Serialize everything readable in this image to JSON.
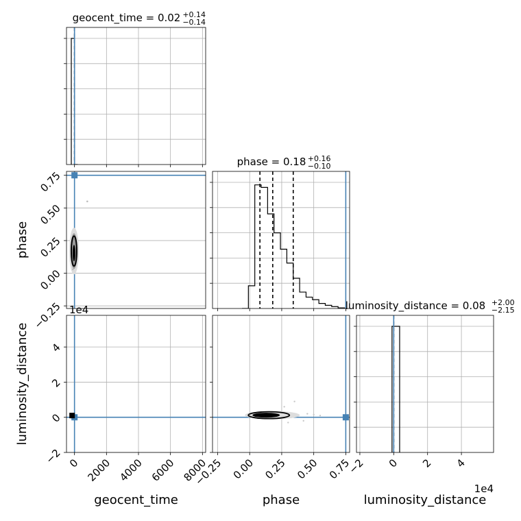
{
  "chart_data": {
    "type": "corner",
    "parameters": [
      "geocent_time",
      "phase",
      "luminosity_distance"
    ],
    "truth": {
      "geocent_time": 0,
      "phase": 0.75,
      "luminosity_distance": 0
    },
    "truth_color": "#4682b4",
    "grid": true,
    "panels": [
      {
        "id": "geocent_time-hist",
        "kind": "histogram",
        "param": "geocent_time",
        "title": {
          "main": "geocent_time = 0.02",
          "sup": "+0.14",
          "sub": "−0.14"
        },
        "xlim": [
          -500,
          8200
        ],
        "xticks": [
          0,
          2000,
          4000,
          6000,
          8000
        ],
        "bins": [
          [
            -200,
            0,
            1.0
          ],
          [
            0,
            200,
            0
          ]
        ],
        "quantiles": [
          0.02
        ]
      },
      {
        "id": "phase-vs-geocent_time",
        "kind": "2d",
        "x": "geocent_time",
        "y": "phase",
        "xlim": [
          -500,
          8200
        ],
        "ylim": [
          -0.27,
          0.78
        ],
        "ylabel": "phase",
        "yticks": [
          -0.25,
          0.0,
          0.25,
          0.5,
          0.75
        ],
        "ytick_labels": [
          "−0.25",
          "0.00",
          "0.25",
          "0.50",
          "0.75"
        ],
        "contour_center": [
          -30,
          0.17
        ],
        "truth": [
          0,
          0.75
        ],
        "outlier_points": [
          [
            800,
            0.55
          ],
          [
            -100,
            0.03
          ]
        ]
      },
      {
        "id": "phase-hist",
        "kind": "histogram",
        "param": "phase",
        "title": {
          "main": "phase = 0.18",
          "sup": "+0.16",
          "sub": "−0.10"
        },
        "xlim": [
          -0.29,
          0.78
        ],
        "xticks": [
          -0.25,
          0.0,
          0.25,
          0.5,
          0.75
        ],
        "bins": [
          [
            -0.06,
            -0.01,
            0.0
          ],
          [
            -0.01,
            0.04,
            0.18
          ],
          [
            0.04,
            0.09,
            0.98
          ],
          [
            0.09,
            0.14,
            0.96
          ],
          [
            0.14,
            0.19,
            0.75
          ],
          [
            0.19,
            0.24,
            0.6
          ],
          [
            0.24,
            0.29,
            0.47
          ],
          [
            0.29,
            0.34,
            0.36
          ],
          [
            0.34,
            0.39,
            0.24
          ],
          [
            0.39,
            0.44,
            0.13
          ],
          [
            0.44,
            0.49,
            0.09
          ],
          [
            0.49,
            0.54,
            0.07
          ],
          [
            0.54,
            0.59,
            0.04
          ],
          [
            0.59,
            0.64,
            0.025
          ],
          [
            0.64,
            0.69,
            0.015
          ],
          [
            0.69,
            0.74,
            0.005
          ]
        ],
        "quantiles": [
          0.08,
          0.18,
          0.34
        ]
      },
      {
        "id": "luminosity_distance-vs-geocent_time",
        "kind": "2d",
        "x": "geocent_time",
        "y": "luminosity_distance",
        "xlim": [
          -500,
          8200
        ],
        "ylim": [
          -2.0,
          5.8
        ],
        "ylabel": "luminosity_distance",
        "yticks": [
          -2,
          0,
          2,
          4
        ],
        "ytick_labels": [
          "−2",
          "0",
          "2",
          "4"
        ],
        "y_offset_label": "1e4",
        "xlabel": "geocent_time",
        "xtick_labels": [
          "0",
          "2000",
          "4000",
          "6000",
          "8000"
        ],
        "xticks": [
          0,
          2000,
          4000,
          6000,
          8000
        ],
        "contour_center": [
          -150,
          0.1
        ],
        "truth": [
          0,
          0
        ]
      },
      {
        "id": "luminosity_distance-vs-phase",
        "kind": "2d",
        "x": "phase",
        "y": "luminosity_distance",
        "xlim": [
          -0.29,
          0.78
        ],
        "ylim": [
          -2.0,
          5.8
        ],
        "xlabel": "phase",
        "xticks": [
          -0.25,
          0.0,
          0.25,
          0.5,
          0.75
        ],
        "xtick_labels": [
          "−0.25",
          "0.00",
          "0.25",
          "0.50",
          "0.75"
        ],
        "contour_center": [
          0.15,
          0.12
        ],
        "truth": [
          0.75,
          0
        ]
      },
      {
        "id": "luminosity_distance-hist",
        "kind": "histogram",
        "param": "luminosity_distance",
        "title": {
          "main": "luminosity_distance = 0.08",
          "sup": "+2.00",
          "sub": "−2.15"
        },
        "xlim": [
          -2.2,
          5.9
        ],
        "xticks": [
          -2,
          0,
          2,
          4
        ],
        "xtick_labels": [
          "−2",
          "0",
          "2",
          "4"
        ],
        "xlabel": "luminosity_distance",
        "x_offset_label": "1e4",
        "bins": [
          [
            -0.1,
            0.35,
            1.0
          ]
        ],
        "quantiles": [
          0.0
        ]
      }
    ]
  }
}
